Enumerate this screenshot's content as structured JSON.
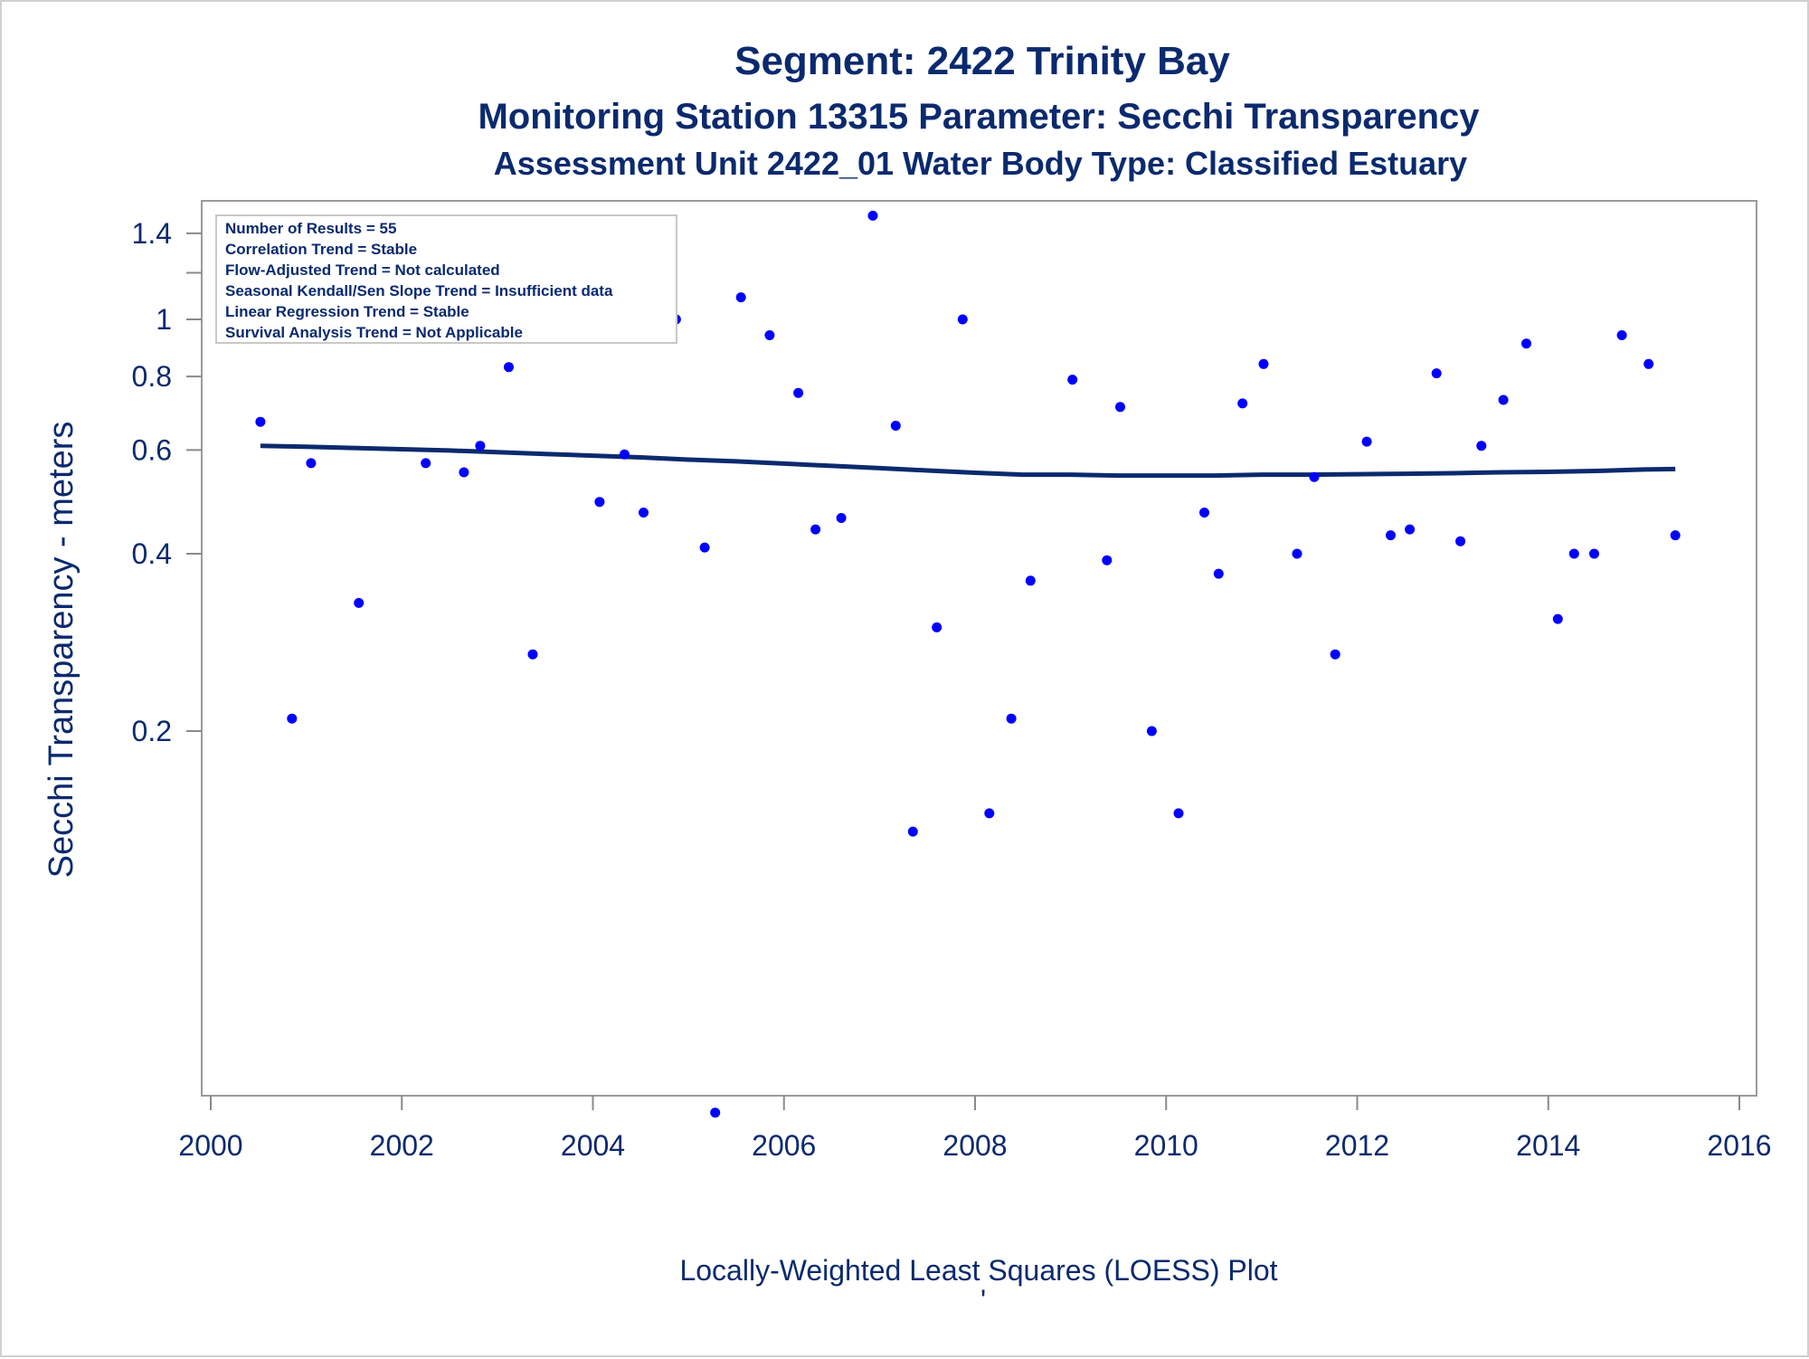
{
  "chart_data": {
    "type": "scatter",
    "title": "Segment: 2422  Trinity Bay",
    "subtitle": "Monitoring Station 13315 Parameter: Secchi Transparency",
    "subtitle2": "Assessment Unit 2422_01   Water Body Type: Classified Estuary",
    "ylabel": "Secchi Transparency - meters",
    "footnote": "Locally-Weighted Least Squares (LOESS) Plot",
    "footnote_mark": "'",
    "yscale": "log",
    "xlim": [
      2000,
      2016
    ],
    "ylim": [
      0.044,
      1.5
    ],
    "x_ticks": [
      2000,
      2002,
      2004,
      2006,
      2008,
      2010,
      2012,
      2014,
      2016
    ],
    "x_tick_labels": [
      "2000",
      "2002",
      "2004",
      "2006",
      "2008",
      "2010",
      "2012",
      "2014",
      "2016"
    ],
    "y_ticks": [
      0.2,
      0.4,
      0.6,
      0.8,
      1,
      1.4
    ],
    "y_tick_labels": [
      "0.2",
      "0.4",
      "0.6",
      "0.8",
      "1",
      "1.4"
    ],
    "y_minor_ticks": [
      1.2
    ],
    "grid": false,
    "inset": [
      "Number of Results = 55",
      "Correlation Trend = Stable",
      "Flow-Adjusted Trend = Not calculated",
      "Seasonal Kendall/Sen Slope Trend = Insufficient data",
      "Linear Regression Trend = Stable",
      "Survival Analysis Trend = Not Applicable"
    ],
    "series": [
      {
        "kind": "points",
        "color": "#0000ff",
        "x": [
          2000.52,
          2000.85,
          2001.05,
          2001.55,
          2001.78,
          2002.25,
          2002.65,
          2002.82,
          2003.12,
          2003.37,
          2004.07,
          2004.33,
          2004.53,
          2004.87,
          2005.17,
          2005.28,
          2005.55,
          2005.85,
          2006.15,
          2006.33,
          2006.6,
          2006.93,
          2007.17,
          2007.35,
          2007.6,
          2007.87,
          2008.15,
          2008.38,
          2008.58,
          2009.02,
          2009.38,
          2009.52,
          2009.85,
          2010.13,
          2010.4,
          2010.55,
          2010.8,
          2011.02,
          2011.37,
          2011.55,
          2011.77,
          2012.1,
          2012.35,
          2012.55,
          2012.83,
          2013.08,
          2013.3,
          2013.53,
          2013.77,
          2014.1,
          2014.27,
          2014.48,
          2014.77,
          2015.05,
          2015.33
        ],
        "y": [
          0.67,
          0.21,
          0.57,
          0.33,
          1.16,
          0.57,
          0.55,
          0.61,
          0.83,
          0.27,
          0.49,
          0.59,
          0.47,
          1.0,
          0.41,
          0.045,
          1.09,
          0.94,
          0.75,
          0.44,
          0.46,
          1.5,
          0.66,
          0.135,
          0.3,
          1.0,
          0.145,
          0.21,
          0.36,
          0.79,
          0.39,
          0.71,
          0.2,
          0.145,
          0.47,
          0.37,
          0.72,
          0.84,
          0.4,
          0.54,
          0.27,
          0.62,
          0.43,
          0.44,
          0.81,
          0.42,
          0.61,
          0.73,
          0.91,
          0.31,
          0.4,
          0.4,
          0.94,
          0.84,
          0.43
        ]
      },
      {
        "kind": "loess",
        "color": "#0b2a6e",
        "x": [
          2000.52,
          2001.0,
          2001.5,
          2002.0,
          2002.5,
          2003.0,
          2003.5,
          2004.0,
          2004.5,
          2005.0,
          2005.5,
          2006.0,
          2006.5,
          2007.0,
          2007.5,
          2008.0,
          2008.5,
          2009.0,
          2009.5,
          2010.0,
          2010.5,
          2011.0,
          2011.5,
          2012.0,
          2012.5,
          2013.0,
          2013.5,
          2014.0,
          2014.5,
          2015.0,
          2015.33
        ],
        "y": [
          0.61,
          0.608,
          0.605,
          0.602,
          0.599,
          0.595,
          0.591,
          0.587,
          0.583,
          0.578,
          0.574,
          0.569,
          0.564,
          0.559,
          0.554,
          0.549,
          0.545,
          0.545,
          0.543,
          0.543,
          0.543,
          0.545,
          0.545,
          0.546,
          0.547,
          0.548,
          0.55,
          0.551,
          0.553,
          0.556,
          0.557
        ]
      }
    ]
  }
}
